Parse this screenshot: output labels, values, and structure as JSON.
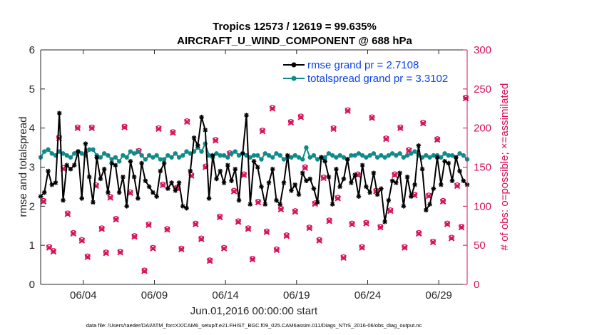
{
  "chart_data": {
    "type": "line",
    "title": "Tropics 12573 / 12619 = 99.635%",
    "subtitle": "AIRCRAFT_U_WIND_COMPONENT @ 688 hPa",
    "xlabel": "Jun.01,2016 00:00:00 start",
    "ylabel_left": "rmse and totalspread",
    "ylabel_right": "# of obs: o=possible; ×=assimilated",
    "footer": "data file: /Users/raeder/DAI/ATM_forcXX/CAM6_setup/f.e21.FHIST_BGC.f09_025.CAM6assim.011/Diags_NTrS_2016-06/obs_diag_output.nc",
    "x_tick_labels": [
      "06/04",
      "06/09",
      "06/14",
      "06/19",
      "06/24",
      "06/29"
    ],
    "x_tick_days": [
      4,
      9,
      14,
      19,
      24,
      29
    ],
    "xlim": [
      1,
      31
    ],
    "ylim_left": [
      0,
      6
    ],
    "yticks_left": [
      "0",
      "1",
      "2",
      "3",
      "4",
      "5",
      "6"
    ],
    "ylim_right": [
      0,
      300
    ],
    "yticks_right": [
      "0",
      "50",
      "100",
      "150",
      "200",
      "250",
      "300"
    ],
    "left_axis_color": "#000000",
    "right_axis_color": "#d6105a",
    "legend_color": "#0a43e6",
    "series": [
      {
        "name": "rmse grand pr = 2.7108",
        "axis": "left",
        "color": "#000000",
        "values": [
          2.25,
          2.35,
          2.9,
          2.55,
          2.6,
          4.38,
          2.15,
          3.05,
          2.95,
          3.05,
          3.4,
          2.2,
          3.6,
          2.75,
          2.1,
          3.25,
          2.7,
          2.95,
          2.35,
          3.1,
          3.05,
          2.35,
          2.75,
          2.0,
          3.15,
          2.75,
          2.2,
          3.1,
          2.65,
          2.5,
          2.35,
          2.25,
          2.9,
          3.1,
          2.45,
          2.6,
          2.4,
          2.6,
          2.0,
          1.95,
          2.9,
          3.75,
          3.55,
          4.28,
          3.95,
          2.2,
          3.3,
          2.7,
          2.9,
          2.6,
          3.05,
          2.65,
          2.95,
          2.15,
          3.35,
          4.33,
          2.05,
          3.15,
          3.0,
          2.5,
          2.05,
          2.6,
          2.95,
          2.15,
          2.05,
          2.6,
          3.3,
          2.4,
          2.55,
          2.3,
          2.85,
          2.65,
          2.7,
          2.45,
          2.1,
          3.25,
          3.15,
          2.75,
          2.05,
          2.95,
          2.5,
          2.7,
          3.2,
          2.6,
          2.8,
          2.25,
          3.05,
          2.5,
          2.35,
          2.85,
          2.3,
          2.45,
          1.6,
          2.15,
          2.65,
          2.6,
          2.85,
          2.0,
          2.75,
          2.25,
          2.55,
          3.55,
          2.95,
          1.9,
          2.05,
          2.45,
          3.25,
          2.55,
          3.15,
          3.1,
          2.65,
          3.25,
          2.9,
          2.65,
          2.55
        ],
        "marker": "asterisk"
      },
      {
        "name": "totalspread grand pr = 3.3102",
        "axis": "left",
        "color": "#108a8a",
        "values": [
          3.25,
          3.4,
          3.45,
          3.35,
          3.3,
          3.4,
          3.35,
          3.3,
          3.25,
          3.35,
          3.4,
          3.35,
          3.3,
          3.45,
          3.45,
          3.3,
          3.25,
          3.35,
          3.3,
          3.2,
          3.25,
          3.15,
          3.3,
          3.25,
          3.4,
          3.35,
          3.4,
          3.3,
          3.2,
          3.3,
          3.25,
          3.3,
          3.2,
          3.2,
          3.3,
          3.25,
          3.35,
          3.25,
          3.3,
          3.4,
          3.35,
          3.4,
          3.5,
          3.4,
          3.6,
          3.3,
          3.25,
          3.35,
          3.3,
          3.3,
          3.25,
          3.35,
          3.4,
          3.3,
          3.35,
          3.3,
          3.25,
          3.3,
          3.3,
          3.2,
          3.35,
          3.3,
          3.25,
          3.35,
          3.3,
          3.2,
          3.25,
          3.25,
          3.3,
          3.25,
          3.2,
          3.5,
          3.25,
          3.3,
          3.2,
          3.25,
          3.25,
          3.35,
          3.3,
          3.25,
          3.3,
          3.25,
          3.2,
          3.3,
          3.3,
          3.35,
          3.3,
          3.25,
          3.3,
          3.35,
          3.25,
          3.3,
          3.25,
          3.3,
          3.35,
          3.3,
          3.35,
          3.25,
          3.3,
          3.35,
          3.4,
          3.3,
          3.25,
          3.3,
          3.25,
          3.3,
          3.3,
          3.25,
          3.35,
          3.3,
          3.3,
          3.25,
          3.35,
          3.3,
          3.2
        ],
        "marker": "circle"
      }
    ],
    "obs_counts": {
      "axis": "right",
      "color": "#d6105a",
      "possible": [
        {
          "day": 1.2,
          "count": 107
        },
        {
          "day": 1.6,
          "count": 48
        },
        {
          "day": 1.9,
          "count": 43
        },
        {
          "day": 2.3,
          "count": 188
        },
        {
          "day": 2.6,
          "count": 149
        },
        {
          "day": 2.9,
          "count": 91
        },
        {
          "day": 3.3,
          "count": 66
        },
        {
          "day": 3.6,
          "count": 201
        },
        {
          "day": 3.9,
          "count": 57
        },
        {
          "day": 4.3,
          "count": 36
        },
        {
          "day": 4.6,
          "count": 201
        },
        {
          "day": 4.9,
          "count": 127
        },
        {
          "day": 5.3,
          "count": 72
        },
        {
          "day": 5.6,
          "count": 41
        },
        {
          "day": 5.9,
          "count": 112
        },
        {
          "day": 6.3,
          "count": 84
        },
        {
          "day": 6.6,
          "count": 42
        },
        {
          "day": 6.9,
          "count": 202
        },
        {
          "day": 7.3,
          "count": 118
        },
        {
          "day": 7.6,
          "count": 62
        },
        {
          "day": 7.9,
          "count": 171
        },
        {
          "day": 8.3,
          "count": 18
        },
        {
          "day": 8.6,
          "count": 77
        },
        {
          "day": 8.9,
          "count": 47
        },
        {
          "day": 9.3,
          "count": 200
        },
        {
          "day": 9.6,
          "count": 128
        },
        {
          "day": 9.9,
          "count": 71
        },
        {
          "day": 10.3,
          "count": 195
        },
        {
          "day": 10.6,
          "count": 124
        },
        {
          "day": 10.9,
          "count": 46
        },
        {
          "day": 11.3,
          "count": 209
        },
        {
          "day": 11.6,
          "count": 140
        },
        {
          "day": 11.9,
          "count": 78
        },
        {
          "day": 12.3,
          "count": 59
        },
        {
          "day": 12.6,
          "count": 151
        },
        {
          "day": 12.9,
          "count": 31
        },
        {
          "day": 13.3,
          "count": 185
        },
        {
          "day": 13.6,
          "count": 87
        },
        {
          "day": 13.9,
          "count": 47
        },
        {
          "day": 14.3,
          "count": 168
        },
        {
          "day": 14.6,
          "count": 120
        },
        {
          "day": 14.9,
          "count": 81
        },
        {
          "day": 15.3,
          "count": 141
        },
        {
          "day": 15.6,
          "count": 72
        },
        {
          "day": 15.9,
          "count": 33
        },
        {
          "day": 16.3,
          "count": 106
        },
        {
          "day": 16.6,
          "count": 197
        },
        {
          "day": 16.9,
          "count": 68
        },
        {
          "day": 17.3,
          "count": 226
        },
        {
          "day": 17.6,
          "count": 45
        },
        {
          "day": 17.9,
          "count": 97
        },
        {
          "day": 18.3,
          "count": 63
        },
        {
          "day": 18.6,
          "count": 208
        },
        {
          "day": 18.9,
          "count": 94
        },
        {
          "day": 19.3,
          "count": 215
        },
        {
          "day": 19.6,
          "count": 150
        },
        {
          "day": 19.9,
          "count": 73
        },
        {
          "day": 20.3,
          "count": 104
        },
        {
          "day": 20.6,
          "count": 57
        },
        {
          "day": 20.9,
          "count": 137
        },
        {
          "day": 21.3,
          "count": 82
        },
        {
          "day": 21.6,
          "count": 200
        },
        {
          "day": 21.9,
          "count": 111
        },
        {
          "day": 22.3,
          "count": 35
        },
        {
          "day": 22.6,
          "count": 223
        },
        {
          "day": 22.9,
          "count": 78
        },
        {
          "day": 23.3,
          "count": 141
        },
        {
          "day": 23.6,
          "count": 48
        },
        {
          "day": 23.9,
          "count": 79
        },
        {
          "day": 24.3,
          "count": 214
        },
        {
          "day": 24.6,
          "count": 120
        },
        {
          "day": 24.9,
          "count": 74
        },
        {
          "day": 25.3,
          "count": 187
        },
        {
          "day": 25.6,
          "count": 95
        },
        {
          "day": 25.9,
          "count": 141
        },
        {
          "day": 26.3,
          "count": 201
        },
        {
          "day": 26.6,
          "count": 48
        },
        {
          "day": 26.9,
          "count": 172
        },
        {
          "day": 27.3,
          "count": 115
        },
        {
          "day": 27.6,
          "count": 66
        },
        {
          "day": 27.9,
          "count": 207
        },
        {
          "day": 28.3,
          "count": 114
        },
        {
          "day": 28.6,
          "count": 55
        },
        {
          "day": 28.9,
          "count": 186
        },
        {
          "day": 29.3,
          "count": 107
        },
        {
          "day": 29.6,
          "count": 78
        },
        {
          "day": 29.9,
          "count": 60
        },
        {
          "day": 30.3,
          "count": 127
        },
        {
          "day": 30.6,
          "count": 74
        },
        {
          "day": 30.9,
          "count": 239
        }
      ],
      "assimilated": [
        {
          "day": 1.2,
          "count": 106
        },
        {
          "day": 1.6,
          "count": 47
        },
        {
          "day": 1.9,
          "count": 42
        },
        {
          "day": 2.3,
          "count": 187
        },
        {
          "day": 2.6,
          "count": 148
        },
        {
          "day": 2.9,
          "count": 90
        },
        {
          "day": 3.3,
          "count": 65
        },
        {
          "day": 3.6,
          "count": 200
        },
        {
          "day": 3.9,
          "count": 56
        },
        {
          "day": 4.3,
          "count": 35
        },
        {
          "day": 4.6,
          "count": 200
        },
        {
          "day": 4.9,
          "count": 126
        },
        {
          "day": 5.3,
          "count": 71
        },
        {
          "day": 5.6,
          "count": 40
        },
        {
          "day": 5.9,
          "count": 111
        },
        {
          "day": 6.3,
          "count": 83
        },
        {
          "day": 6.6,
          "count": 41
        },
        {
          "day": 6.9,
          "count": 201
        },
        {
          "day": 7.3,
          "count": 117
        },
        {
          "day": 7.6,
          "count": 61
        },
        {
          "day": 7.9,
          "count": 170
        },
        {
          "day": 8.3,
          "count": 17
        },
        {
          "day": 8.6,
          "count": 76
        },
        {
          "day": 8.9,
          "count": 46
        },
        {
          "day": 9.3,
          "count": 199
        },
        {
          "day": 9.6,
          "count": 127
        },
        {
          "day": 9.9,
          "count": 70
        },
        {
          "day": 10.3,
          "count": 194
        },
        {
          "day": 10.6,
          "count": 123
        },
        {
          "day": 10.9,
          "count": 45
        },
        {
          "day": 11.3,
          "count": 208
        },
        {
          "day": 11.6,
          "count": 139
        },
        {
          "day": 11.9,
          "count": 77
        },
        {
          "day": 12.3,
          "count": 58
        },
        {
          "day": 12.6,
          "count": 150
        },
        {
          "day": 12.9,
          "count": 30
        },
        {
          "day": 13.3,
          "count": 184
        },
        {
          "day": 13.6,
          "count": 86
        },
        {
          "day": 13.9,
          "count": 46
        },
        {
          "day": 14.3,
          "count": 167
        },
        {
          "day": 14.6,
          "count": 119
        },
        {
          "day": 14.9,
          "count": 80
        },
        {
          "day": 15.3,
          "count": 140
        },
        {
          "day": 15.6,
          "count": 71
        },
        {
          "day": 15.9,
          "count": 32
        },
        {
          "day": 16.3,
          "count": 105
        },
        {
          "day": 16.6,
          "count": 196
        },
        {
          "day": 16.9,
          "count": 67
        },
        {
          "day": 17.3,
          "count": 225
        },
        {
          "day": 17.6,
          "count": 44
        },
        {
          "day": 17.9,
          "count": 96
        },
        {
          "day": 18.3,
          "count": 62
        },
        {
          "day": 18.6,
          "count": 207
        },
        {
          "day": 18.9,
          "count": 93
        },
        {
          "day": 19.3,
          "count": 214
        },
        {
          "day": 19.6,
          "count": 149
        },
        {
          "day": 19.9,
          "count": 72
        },
        {
          "day": 20.3,
          "count": 103
        },
        {
          "day": 20.6,
          "count": 56
        },
        {
          "day": 20.9,
          "count": 136
        },
        {
          "day": 21.3,
          "count": 81
        },
        {
          "day": 21.6,
          "count": 199
        },
        {
          "day": 21.9,
          "count": 110
        },
        {
          "day": 22.3,
          "count": 34
        },
        {
          "day": 22.6,
          "count": 222
        },
        {
          "day": 22.9,
          "count": 77
        },
        {
          "day": 23.3,
          "count": 140
        },
        {
          "day": 23.6,
          "count": 47
        },
        {
          "day": 23.9,
          "count": 78
        },
        {
          "day": 24.3,
          "count": 213
        },
        {
          "day": 24.6,
          "count": 119
        },
        {
          "day": 24.9,
          "count": 73
        },
        {
          "day": 25.3,
          "count": 186
        },
        {
          "day": 25.6,
          "count": 94
        },
        {
          "day": 25.9,
          "count": 140
        },
        {
          "day": 26.3,
          "count": 200
        },
        {
          "day": 26.6,
          "count": 47
        },
        {
          "day": 26.9,
          "count": 171
        },
        {
          "day": 27.3,
          "count": 114
        },
        {
          "day": 27.6,
          "count": 65
        },
        {
          "day": 27.9,
          "count": 206
        },
        {
          "day": 28.3,
          "count": 113
        },
        {
          "day": 28.6,
          "count": 54
        },
        {
          "day": 28.9,
          "count": 185
        },
        {
          "day": 29.3,
          "count": 106
        },
        {
          "day": 29.6,
          "count": 77
        },
        {
          "day": 29.9,
          "count": 59
        },
        {
          "day": 30.3,
          "count": 126
        },
        {
          "day": 30.6,
          "count": 73
        },
        {
          "day": 30.9,
          "count": 238
        }
      ]
    }
  }
}
